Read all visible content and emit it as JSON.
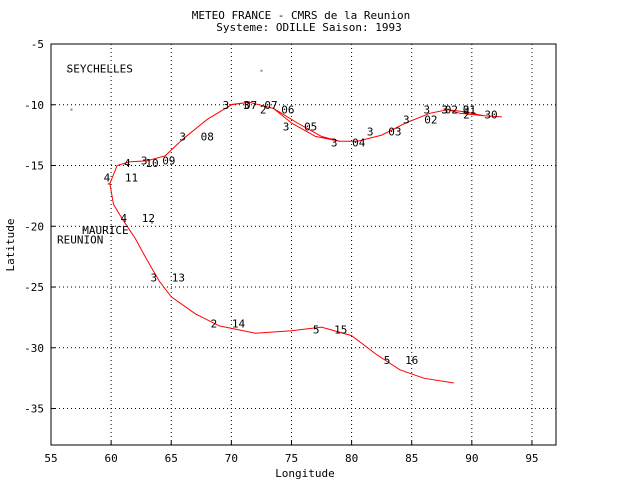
{
  "chart_data": {
    "type": "line",
    "title": "METEO FRANCE - CMRS de la Reunion",
    "subtitle": "Systeme: ODILLE  Saison: 1993",
    "xlabel": "Longitude",
    "ylabel": "Latitude",
    "xlim": [
      55,
      97
    ],
    "ylim": [
      -38,
      -5
    ],
    "x_ticks": [
      55,
      60,
      65,
      70,
      75,
      80,
      85,
      90,
      95
    ],
    "y_ticks": [
      -5,
      -10,
      -15,
      -20,
      -25,
      -30,
      -35
    ],
    "grid": true,
    "series": [
      {
        "color": "#ff0000",
        "x": [
          69.8,
          71.5,
          73.5,
          75.5,
          77.5,
          79.0,
          80.5,
          82.5,
          84.5,
          86.5,
          88.0,
          89.5,
          91.0,
          92.5,
          91.0,
          89.0,
          88.0,
          86.5,
          84.5,
          82.5,
          80.5,
          79.0,
          77.0,
          75.0,
          73.5,
          71.5,
          70.0,
          68.0,
          66.0,
          64.5,
          63.0,
          61.5,
          60.5,
          59.9,
          60.2,
          61.0,
          62.0,
          63.0,
          64.0,
          65.0,
          67.0,
          69.0,
          72.0,
          75.0,
          77.5,
          80.0,
          82.0,
          84.0,
          86.0,
          88.5
        ],
        "y": [
          -10.0,
          -9.8,
          -10.3,
          -11.5,
          -12.6,
          -13.0,
          -13.0,
          -12.5,
          -11.5,
          -10.7,
          -10.4,
          -10.6,
          -10.9,
          -11.0,
          -10.9,
          -10.7,
          -10.4,
          -10.7,
          -11.5,
          -12.5,
          -13.0,
          -13.0,
          -12.6,
          -11.5,
          -10.3,
          -9.8,
          -10.0,
          -11.2,
          -12.8,
          -14.2,
          -14.6,
          -14.7,
          -15.0,
          -16.5,
          -18.2,
          -19.5,
          -21.0,
          -22.8,
          -24.5,
          -25.8,
          -27.2,
          -28.2,
          -28.8,
          -28.6,
          -28.3,
          -29.0,
          -30.5,
          -31.8,
          -32.5,
          -32.9
        ]
      }
    ],
    "annotations": [
      {
        "x": 61.6,
        "y": -14.8,
        "intensity": "4",
        "day": "10"
      },
      {
        "x": 59.9,
        "y": -16.0,
        "intensity": "4",
        "day": "11"
      },
      {
        "x": 61.3,
        "y": -19.3,
        "intensity": "4",
        "day": "12"
      },
      {
        "x": 63.8,
        "y": -24.2,
        "intensity": "3",
        "day": "13"
      },
      {
        "x": 68.8,
        "y": -28.0,
        "intensity": "2",
        "day": "14"
      },
      {
        "x": 77.3,
        "y": -28.5,
        "intensity": "5",
        "day": "15"
      },
      {
        "x": 83.2,
        "y": -31.0,
        "intensity": "5",
        "day": "16"
      },
      {
        "x": 89.8,
        "y": -10.8,
        "intensity": "2",
        "day": "30"
      },
      {
        "x": 88.0,
        "y": -10.4,
        "intensity": "3",
        "day": "31"
      },
      {
        "x": 88.0,
        "y": -10.4,
        "intensity": "3",
        "day": "01"
      },
      {
        "x": 86.5,
        "y": -10.4,
        "intensity": "3",
        "day": "02"
      },
      {
        "x": 84.8,
        "y": -11.2,
        "intensity": "3",
        "day": "02"
      },
      {
        "x": 81.8,
        "y": -12.2,
        "intensity": "3",
        "day": "03"
      },
      {
        "x": 78.8,
        "y": -13.1,
        "intensity": "3",
        "day": "04"
      },
      {
        "x": 74.8,
        "y": -11.8,
        "intensity": "3",
        "day": "05"
      },
      {
        "x": 72.9,
        "y": -10.4,
        "intensity": "2",
        "day": "06"
      },
      {
        "x": 71.5,
        "y": -10.0,
        "intensity": "3",
        "day": "07"
      },
      {
        "x": 69.8,
        "y": -10.0,
        "intensity": "3",
        "day": "07"
      },
      {
        "x": 66.2,
        "y": -12.6,
        "intensity": "3",
        "day": "08"
      },
      {
        "x": 63.0,
        "y": -14.6,
        "intensity": "3",
        "day": "09"
      }
    ],
    "places": [
      {
        "name": "SEYCHELLES",
        "x": 56.3,
        "y": -7.0
      },
      {
        "name": "MAURICE",
        "x": 57.6,
        "y": -20.3
      },
      {
        "name": "REUNION",
        "x": 55.5,
        "y": -21.1
      }
    ],
    "islands": [
      {
        "x": 56.4,
        "y": -7.2
      },
      {
        "x": 56.7,
        "y": -10.4
      },
      {
        "x": 72.5,
        "y": -7.2
      },
      {
        "x": 57.7,
        "y": -20.3
      },
      {
        "x": 63.4,
        "y": -19.7
      },
      {
        "x": 59.8,
        "y": -16.5
      }
    ]
  }
}
